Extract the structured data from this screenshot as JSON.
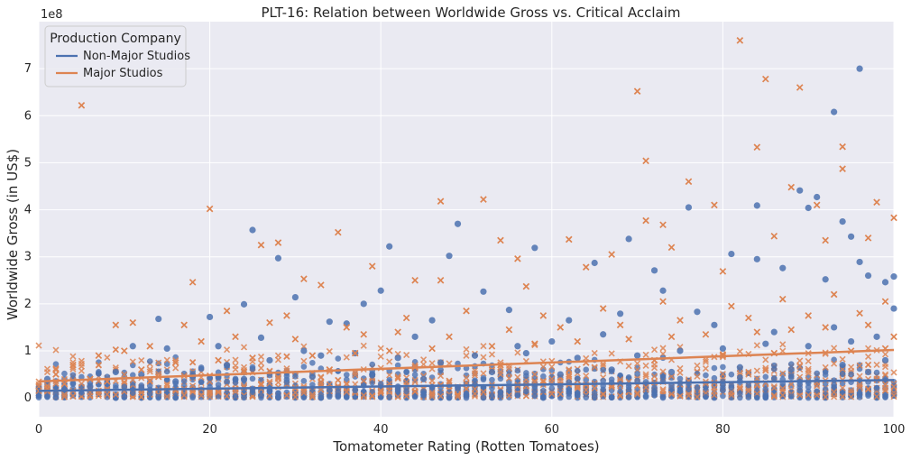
{
  "chart_data": {
    "type": "scatter",
    "title": "PLT-16: Relation between Worldwide Gross vs. Critical Acclaim",
    "xlabel": "Tomatometer Rating (Rotten Tomatoes)",
    "ylabel": "Worldwide Gross (in US$)",
    "y_offset_label": "1e8",
    "xlim": [
      0,
      100
    ],
    "ylim": [
      -0.4,
      8.0
    ],
    "y_scale_multiplier": 100000000,
    "x_ticks": [
      0,
      20,
      40,
      60,
      80,
      100
    ],
    "x_tick_labels": [
      "0",
      "20",
      "40",
      "60",
      "80",
      "100"
    ],
    "y_ticks": [
      0,
      1,
      2,
      3,
      4,
      5,
      6,
      7
    ],
    "y_tick_labels": [
      "0",
      "1",
      "2",
      "3",
      "4",
      "5",
      "6",
      "7"
    ],
    "grid": true,
    "legend": {
      "title": "Production Company",
      "placement": "top-left",
      "entries": [
        "Non-Major Studios",
        "Major Studios"
      ]
    },
    "colors": {
      "background": "#eaeaf2",
      "grid": "#ffffff",
      "non_major": "#4c72b0",
      "major": "#dd8452"
    },
    "series": [
      {
        "name": "Non-Major Studios",
        "marker": "circle",
        "points": [
          [
            96,
            7.0
          ],
          [
            93,
            6.08
          ],
          [
            49,
            3.7
          ],
          [
            25,
            3.57
          ],
          [
            28,
            2.97
          ],
          [
            30,
            2.14
          ],
          [
            24,
            1.99
          ],
          [
            20,
            1.72
          ],
          [
            14,
            1.68
          ],
          [
            41,
            3.22
          ],
          [
            48,
            3.02
          ],
          [
            58,
            3.19
          ],
          [
            69,
            3.38
          ],
          [
            76,
            4.05
          ],
          [
            84,
            4.09
          ],
          [
            89,
            4.41
          ],
          [
            90,
            4.04
          ],
          [
            91,
            4.27
          ],
          [
            94,
            3.75
          ],
          [
            95,
            3.43
          ],
          [
            96,
            2.89
          ],
          [
            100,
            2.58
          ],
          [
            99,
            2.46
          ],
          [
            87,
            2.76
          ],
          [
            81,
            3.06
          ],
          [
            73,
            2.28
          ],
          [
            72,
            2.71
          ],
          [
            65,
            2.87
          ],
          [
            52,
            2.26
          ],
          [
            40,
            2.28
          ],
          [
            38,
            2.0
          ],
          [
            34,
            1.62
          ],
          [
            36,
            1.58
          ],
          [
            46,
            1.65
          ],
          [
            55,
            1.87
          ],
          [
            62,
            1.65
          ],
          [
            68,
            1.79
          ],
          [
            77,
            1.83
          ],
          [
            84,
            2.95
          ],
          [
            92,
            2.52
          ],
          [
            97,
            2.6
          ],
          [
            100,
            1.9
          ],
          [
            21,
            1.1
          ],
          [
            15,
            1.05
          ],
          [
            11,
            1.1
          ],
          [
            26,
            1.28
          ],
          [
            31,
            1.0
          ],
          [
            44,
            1.3
          ],
          [
            56,
            1.1
          ],
          [
            60,
            1.2
          ],
          [
            66,
            1.35
          ],
          [
            79,
            1.55
          ],
          [
            86,
            1.4
          ],
          [
            93,
            1.5
          ],
          [
            98,
            1.3
          ],
          [
            6,
            0.25
          ],
          [
            3,
            0.18
          ],
          [
            1,
            0.4
          ],
          [
            9,
            0.55
          ],
          [
            12,
            0.5
          ],
          [
            18,
            0.45
          ],
          [
            22,
            0.7
          ],
          [
            27,
            0.8
          ],
          [
            33,
            0.9
          ],
          [
            37,
            0.95
          ],
          [
            42,
            0.85
          ],
          [
            47,
            0.75
          ],
          [
            51,
            0.9
          ],
          [
            57,
            0.95
          ],
          [
            63,
            0.85
          ],
          [
            70,
            0.9
          ],
          [
            75,
            1.0
          ],
          [
            80,
            1.05
          ],
          [
            85,
            1.15
          ],
          [
            90,
            1.1
          ],
          [
            95,
            1.2
          ],
          [
            99,
            0.8
          ],
          [
            8,
            0.3
          ],
          [
            16,
            0.35
          ],
          [
            24,
            0.4
          ],
          [
            32,
            0.45
          ],
          [
            39,
            0.5
          ],
          [
            45,
            0.4
          ],
          [
            53,
            0.55
          ],
          [
            61,
            0.5
          ],
          [
            67,
            0.6
          ],
          [
            74,
            0.55
          ],
          [
            82,
            0.65
          ],
          [
            88,
            0.6
          ],
          [
            94,
            0.7
          ],
          [
            97,
            0.55
          ]
        ]
      },
      {
        "name": "Major Studios",
        "marker": "x",
        "points": [
          [
            82,
            7.6
          ],
          [
            5,
            6.22
          ],
          [
            85,
            6.78
          ],
          [
            70,
            6.52
          ],
          [
            89,
            6.6
          ],
          [
            71,
            5.04
          ],
          [
            84,
            5.33
          ],
          [
            94,
            5.34
          ],
          [
            94,
            4.87
          ],
          [
            88,
            4.48
          ],
          [
            76,
            4.6
          ],
          [
            52,
            4.22
          ],
          [
            47,
            4.18
          ],
          [
            20,
            4.02
          ],
          [
            98,
            4.16
          ],
          [
            91,
            4.1
          ],
          [
            79,
            4.1
          ],
          [
            71,
            3.77
          ],
          [
            73,
            3.68
          ],
          [
            100,
            3.83
          ],
          [
            35,
            3.52
          ],
          [
            26,
            3.25
          ],
          [
            28,
            3.3
          ],
          [
            39,
            2.8
          ],
          [
            56,
            2.96
          ],
          [
            62,
            3.37
          ],
          [
            80,
            2.69
          ],
          [
            18,
            2.46
          ],
          [
            31,
            2.53
          ],
          [
            47,
            2.5
          ],
          [
            57,
            2.37
          ],
          [
            67,
            3.05
          ],
          [
            74,
            3.2
          ],
          [
            86,
            3.44
          ],
          [
            92,
            3.35
          ],
          [
            97,
            3.4
          ],
          [
            64,
            2.78
          ],
          [
            54,
            3.35
          ],
          [
            44,
            2.5
          ],
          [
            33,
            2.4
          ],
          [
            29,
            1.75
          ],
          [
            22,
            1.85
          ],
          [
            9,
            1.55
          ],
          [
            11,
            1.6
          ],
          [
            17,
            1.55
          ],
          [
            27,
            1.6
          ],
          [
            36,
            1.5
          ],
          [
            43,
            1.7
          ],
          [
            50,
            1.85
          ],
          [
            59,
            1.75
          ],
          [
            66,
            1.9
          ],
          [
            73,
            2.05
          ],
          [
            81,
            1.95
          ],
          [
            87,
            2.1
          ],
          [
            93,
            2.2
          ],
          [
            99,
            2.05
          ],
          [
            2,
            0.5
          ],
          [
            4,
            0.7
          ],
          [
            7,
            0.9
          ],
          [
            10,
            1.0
          ],
          [
            13,
            1.1
          ],
          [
            19,
            1.2
          ],
          [
            23,
            1.3
          ],
          [
            30,
            1.25
          ],
          [
            38,
            1.35
          ],
          [
            42,
            1.4
          ],
          [
            48,
            1.3
          ],
          [
            55,
            1.45
          ],
          [
            61,
            1.5
          ],
          [
            68,
            1.55
          ],
          [
            75,
            1.65
          ],
          [
            83,
            1.7
          ],
          [
            90,
            1.75
          ],
          [
            96,
            1.8
          ],
          [
            1,
            0.2
          ],
          [
            6,
            0.4
          ],
          [
            12,
            0.6
          ],
          [
            16,
            0.75
          ],
          [
            21,
            0.8
          ],
          [
            25,
            0.85
          ],
          [
            32,
            0.9
          ],
          [
            37,
            0.95
          ],
          [
            41,
            1.0
          ],
          [
            46,
            1.05
          ],
          [
            53,
            1.1
          ],
          [
            58,
            1.15
          ],
          [
            63,
            1.2
          ],
          [
            69,
            1.25
          ],
          [
            74,
            1.3
          ],
          [
            78,
            1.35
          ],
          [
            84,
            1.4
          ],
          [
            88,
            1.45
          ],
          [
            92,
            1.5
          ],
          [
            97,
            1.55
          ],
          [
            100,
            1.3
          ],
          [
            3,
            0.3
          ],
          [
            8,
            0.35
          ],
          [
            14,
            0.45
          ],
          [
            24,
            0.55
          ],
          [
            34,
            0.6
          ],
          [
            44,
            0.65
          ],
          [
            54,
            0.7
          ],
          [
            64,
            0.75
          ],
          [
            72,
            0.8
          ],
          [
            80,
            0.9
          ],
          [
            86,
            0.95
          ],
          [
            95,
            1.0
          ],
          [
            99,
            1.05
          ]
        ]
      }
    ],
    "trend_lines": [
      {
        "name": "Non-Major Studios",
        "x": [
          0,
          100
        ],
        "y": [
          0.15,
          0.38
        ]
      },
      {
        "name": "Major Studios",
        "x": [
          0,
          100
        ],
        "y": [
          0.35,
          1.02
        ]
      }
    ]
  }
}
